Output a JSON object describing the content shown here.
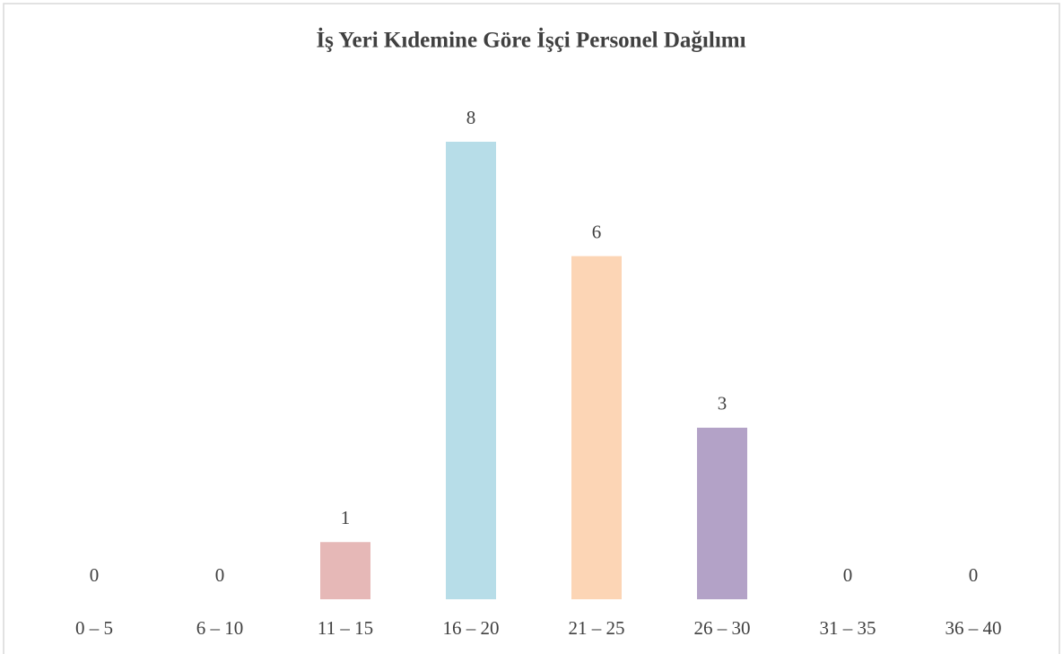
{
  "chart_data": {
    "type": "bar",
    "title": "İş Yeri Kıdemine Göre İşçi Personel Dağılımı",
    "categories": [
      "0 – 5",
      "6 – 10",
      "11 – 15",
      "16 – 20",
      "21 – 25",
      "26 – 30",
      "31 – 35",
      "36 – 40"
    ],
    "values": [
      0,
      0,
      1,
      8,
      6,
      3,
      0,
      0
    ],
    "colors": [
      null,
      null,
      "#e6b8b7",
      "#b7dde8",
      "#fcd5b5",
      "#b3a2c7",
      null,
      null
    ]
  }
}
